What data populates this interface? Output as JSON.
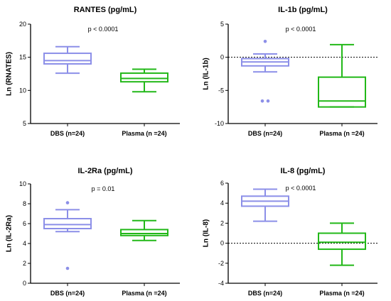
{
  "chart_data": [
    {
      "type": "box",
      "title": "RANTES (pg/mL)",
      "ylabel": "Ln (RNATES)",
      "xlabel": "",
      "ylim": [
        5,
        20
      ],
      "yticks": [
        5,
        10,
        15,
        20
      ],
      "annotation": "p < 0.0001",
      "reference_line": null,
      "categories": [
        "DBS (n=24)",
        "Plasma (n =24)"
      ],
      "series": [
        {
          "category": "DBS (n=24)",
          "color": "#8c8fe8",
          "whisker_low": 12.6,
          "q1": 14.0,
          "median": 14.5,
          "q3": 15.6,
          "whisker_high": 16.6,
          "outliers": []
        },
        {
          "category": "Plasma (n =24)",
          "color": "#22b818",
          "whisker_low": 9.8,
          "q1": 11.3,
          "median": 11.8,
          "q3": 12.6,
          "whisker_high": 13.2,
          "outliers": []
        }
      ]
    },
    {
      "type": "box",
      "title": "IL-1b (pg/mL)",
      "ylabel": "Ln (IL-1b)",
      "xlabel": "",
      "ylim": [
        -10,
        5
      ],
      "yticks": [
        -10,
        -5,
        0,
        5
      ],
      "annotation": "p < 0.0001",
      "reference_line": 0,
      "categories": [
        "DBS (n=24)",
        "Plasma (n =24)"
      ],
      "series": [
        {
          "category": "DBS (n=24)",
          "color": "#8c8fe8",
          "whisker_low": -2.2,
          "q1": -1.3,
          "median": -0.7,
          "q3": -0.2,
          "whisker_high": 0.5,
          "outliers": [
            2.4,
            -6.6,
            -6.6
          ]
        },
        {
          "category": "Plasma (n =24)",
          "color": "#22b818",
          "whisker_low": -7.5,
          "q1": -7.5,
          "median": -6.6,
          "q3": -3.0,
          "whisker_high": 1.9,
          "outliers": []
        }
      ]
    },
    {
      "type": "box",
      "title": "IL-2Ra (pg/mL)",
      "ylabel": "Ln (IL-2Ra)",
      "xlabel": "",
      "ylim": [
        0,
        10
      ],
      "yticks": [
        0,
        2,
        4,
        6,
        8,
        10
      ],
      "annotation": "p = 0.01",
      "reference_line": null,
      "categories": [
        "DBS (n=24)",
        "Plasma (n =24)"
      ],
      "series": [
        {
          "category": "DBS (n=24)",
          "color": "#8c8fe8",
          "whisker_low": 5.2,
          "q1": 5.5,
          "median": 5.9,
          "q3": 6.5,
          "whisker_high": 7.4,
          "outliers": [
            8.1,
            1.5
          ]
        },
        {
          "category": "Plasma (n =24)",
          "color": "#22b818",
          "whisker_low": 4.3,
          "q1": 4.8,
          "median": 5.0,
          "q3": 5.4,
          "whisker_high": 6.3,
          "outliers": []
        }
      ]
    },
    {
      "type": "box",
      "title": "IL-8 (pg/mL)",
      "ylabel": "Ln (IL-8)",
      "xlabel": "",
      "ylim": [
        -4,
        6
      ],
      "yticks": [
        -4,
        -2,
        0,
        2,
        4,
        6
      ],
      "annotation": "p < 0.0001",
      "reference_line": 0,
      "categories": [
        "DBS (n=24)",
        "Plasma (n =24)"
      ],
      "series": [
        {
          "category": "DBS (n=24)",
          "color": "#8c8fe8",
          "whisker_low": 2.2,
          "q1": 3.7,
          "median": 4.2,
          "q3": 4.7,
          "whisker_high": 5.4,
          "outliers": []
        },
        {
          "category": "Plasma (n =24)",
          "color": "#22b818",
          "whisker_low": -2.2,
          "q1": -0.6,
          "median": 0.1,
          "q3": 1.0,
          "whisker_high": 2.0,
          "outliers": []
        }
      ]
    }
  ]
}
